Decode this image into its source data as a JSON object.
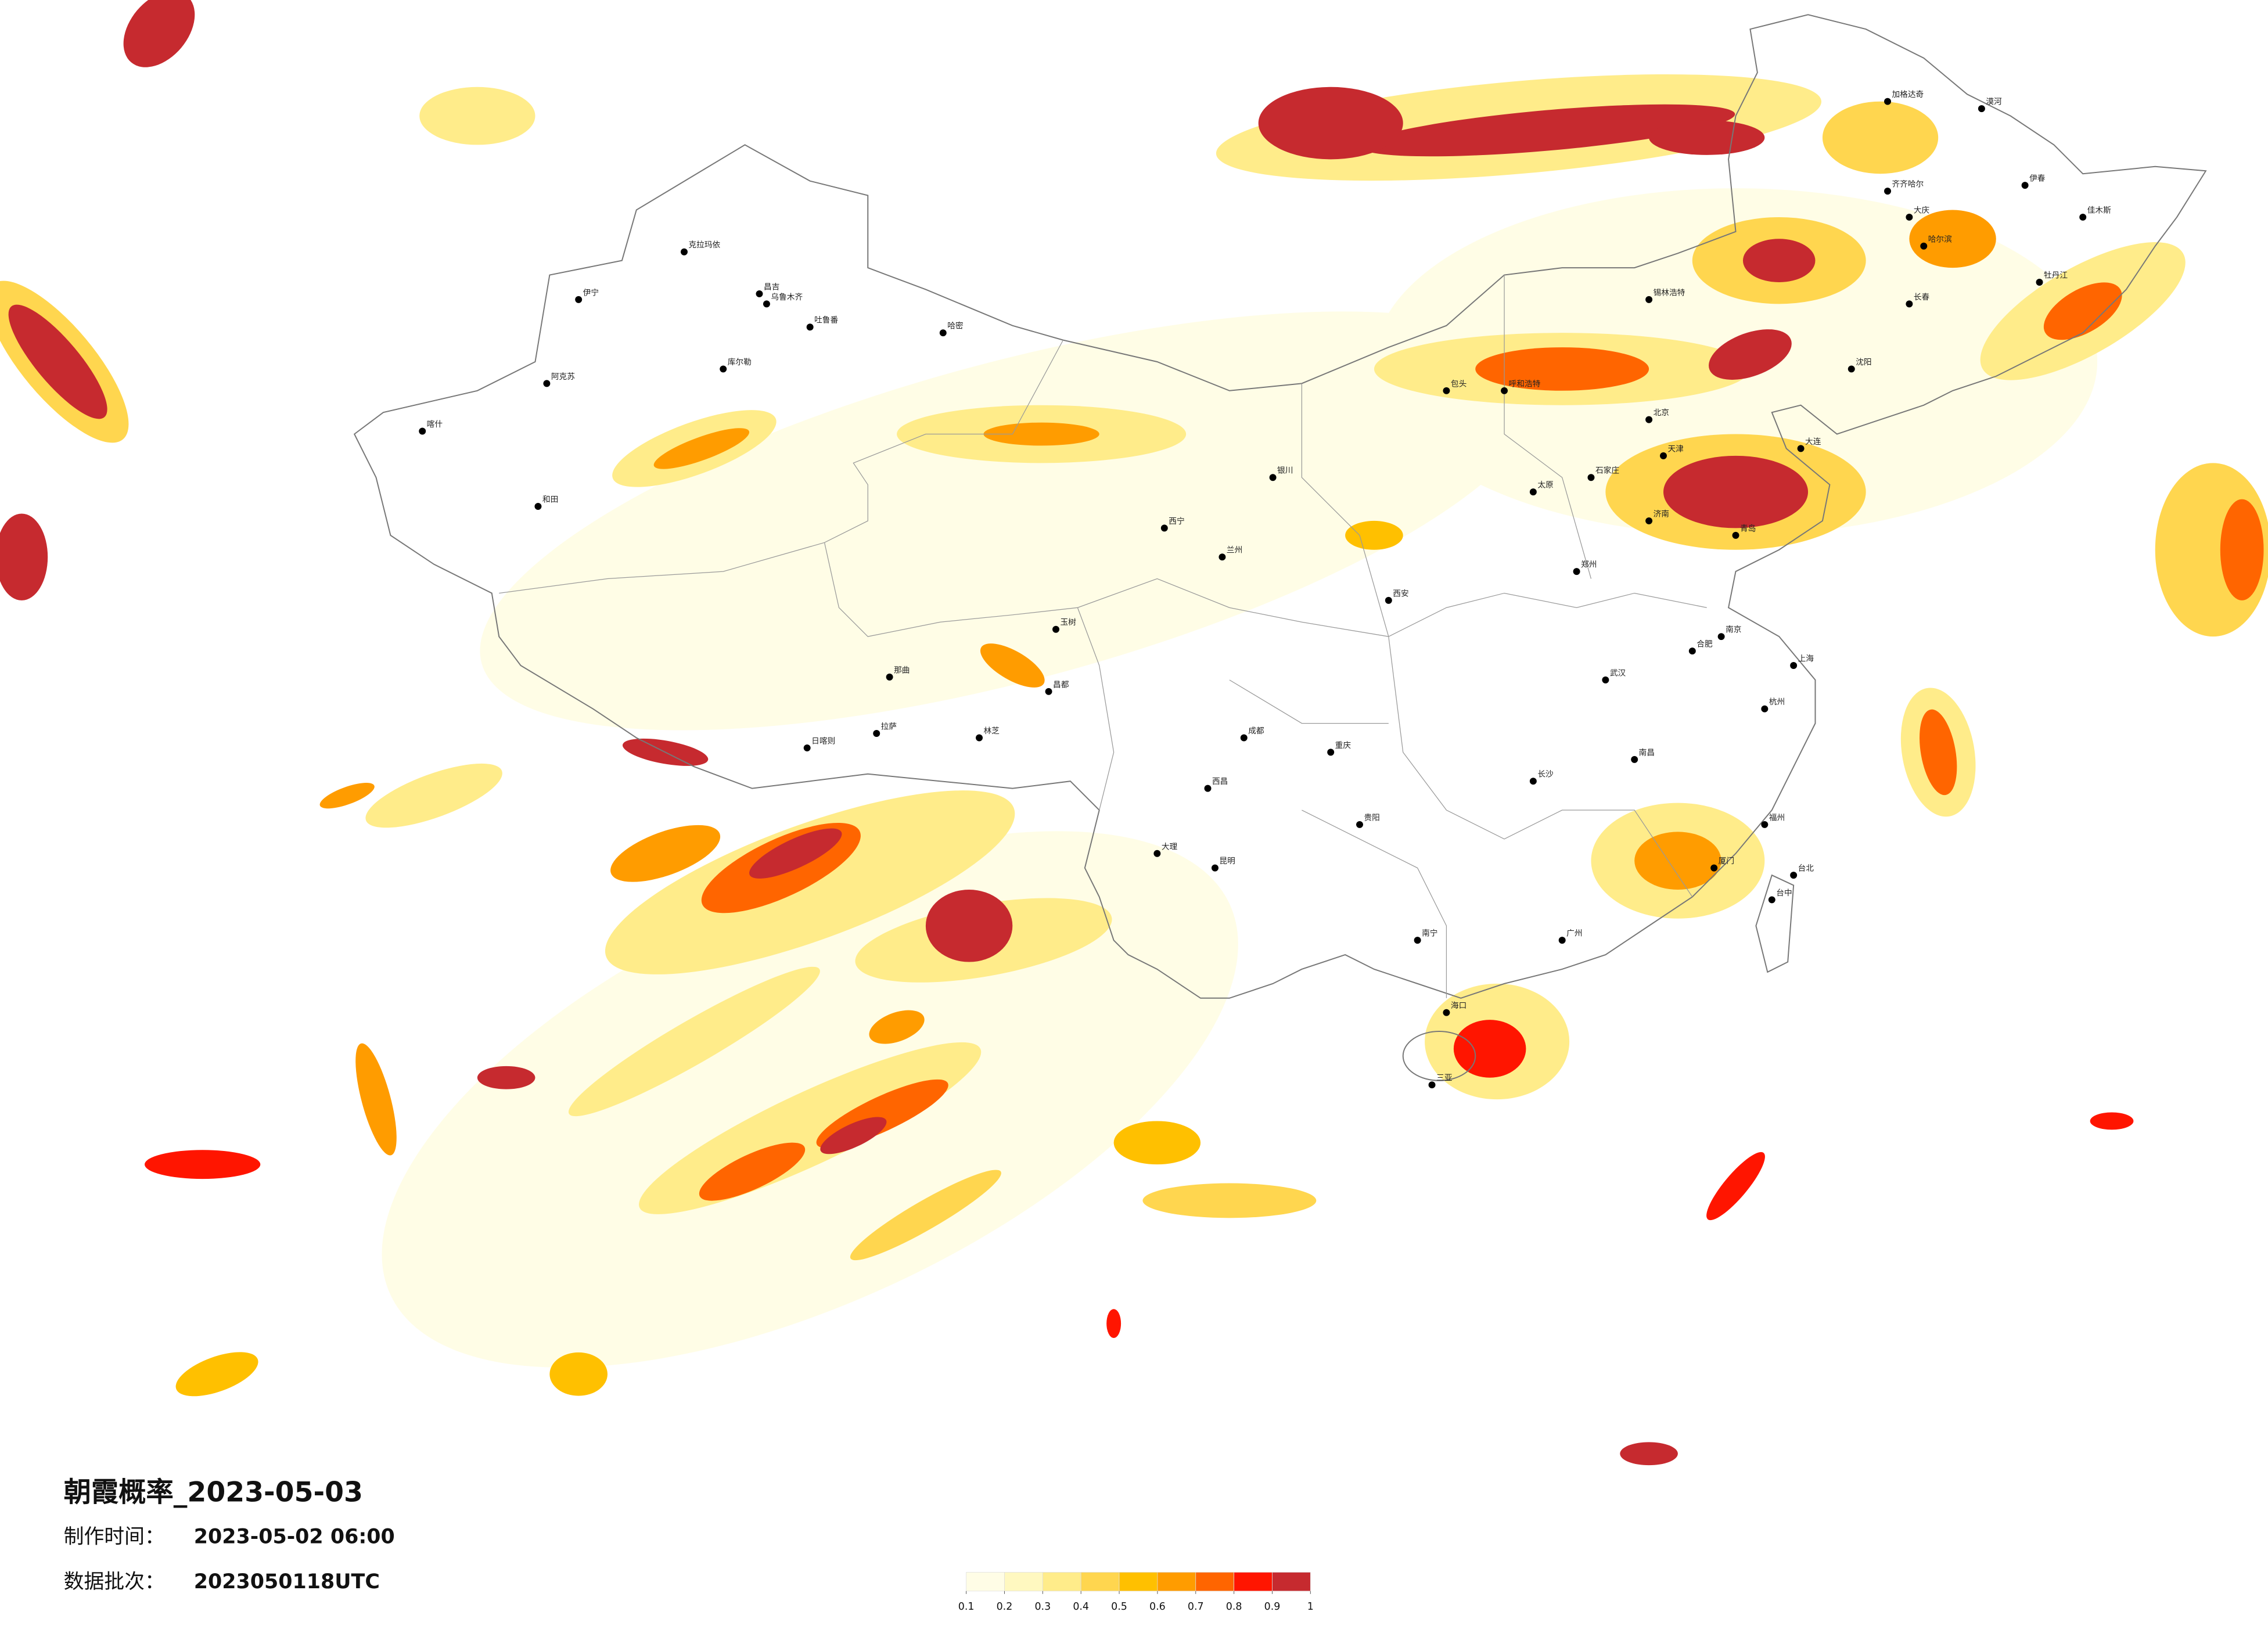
{
  "info": {
    "title": "朝霞概率_2023-05-03",
    "production_time_label": "制作时间：",
    "production_time": "2023-05-02 06:00",
    "batch_label": "数据批次：",
    "batch": "2023050118UTC"
  },
  "legend": {
    "ticks": [
      0.1,
      0.2,
      0.3,
      0.4,
      0.5,
      0.6,
      0.7,
      0.8,
      0.9,
      1
    ],
    "colors": [
      "#fffde6",
      "#fff8c0",
      "#ffec8a",
      "#ffd64f",
      "#ffc000",
      "#ff9c00",
      "#ff6500",
      "#ff1500",
      "#c62a2f"
    ]
  },
  "cities": [
    "喀什",
    "阿克苏",
    "和田",
    "伊宁",
    "克拉玛依",
    "昌吉",
    "乌鲁木齐",
    "吐鲁番",
    "哈密",
    "库尔勒",
    "日喀则",
    "拉萨",
    "林芝",
    "那曲",
    "昌都",
    "玉树",
    "西宁",
    "兰州",
    "银川",
    "呼和浩特",
    "北京",
    "天津",
    "石家庄",
    "太原",
    "济南",
    "郑州",
    "西安",
    "成都",
    "重庆",
    "武汉",
    "长沙",
    "南昌",
    "合肥",
    "南京",
    "杭州",
    "上海",
    "福州",
    "广州",
    "南宁",
    "贵阳",
    "昆明",
    "海口",
    "台北",
    "台中",
    "沈阳",
    "长春",
    "哈尔滨",
    "大庆",
    "齐齐哈尔",
    "漠河",
    "加格达奇",
    "伊春",
    "佳木斯",
    "牡丹江",
    "大连",
    "青岛",
    "厦门",
    "三亚",
    "大理",
    "西昌",
    "包头",
    "锡林浩特"
  ]
}
